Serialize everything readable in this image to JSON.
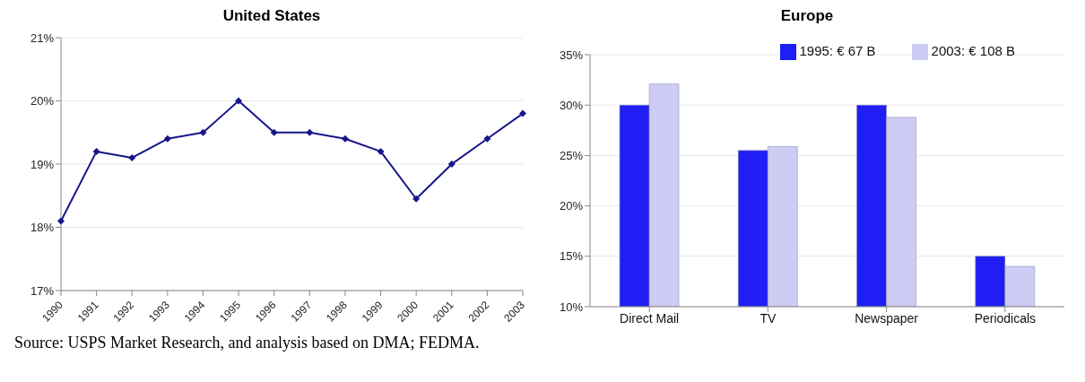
{
  "chart_data": [
    {
      "type": "line",
      "title": "United States",
      "categories": [
        "1990",
        "1991",
        "1992",
        "1993",
        "1994",
        "1995",
        "1996",
        "1997",
        "1998",
        "1999",
        "2000",
        "2001",
        "2002",
        "2003"
      ],
      "series": [
        {
          "color": "#16168a",
          "values": [
            18.1,
            19.2,
            19.1,
            19.4,
            19.5,
            20.0,
            19.5,
            19.5,
            19.4,
            19.2,
            18.45,
            19.0,
            19.4,
            19.8
          ]
        }
      ],
      "ylim": [
        17,
        21
      ],
      "yticks": [
        {
          "value": 17,
          "label": "17%"
        },
        {
          "value": 18,
          "label": "18%"
        },
        {
          "value": 19,
          "label": "19%"
        },
        {
          "value": 20,
          "label": "20%"
        },
        {
          "value": 21,
          "label": "21%"
        }
      ],
      "grid": "y",
      "legend": false,
      "marker": "diamond",
      "line_style": "solid",
      "annotations": [
        "Source: USPS Market Research, and analysis based on DMA; FEDMA."
      ]
    },
    {
      "type": "bar",
      "title": "Europe",
      "categories": [
        "Direct Mail",
        "TV",
        "Newspaper",
        "Periodicals"
      ],
      "series": [
        {
          "name": "1995: € 67 B",
          "color": "#1f1ff5",
          "values": [
            30,
            25.5,
            30,
            15
          ]
        },
        {
          "name": "2003: € 108 B",
          "color": "#ccccf5",
          "values": [
            32.1,
            25.9,
            28.8,
            14
          ]
        }
      ],
      "ylim": [
        10,
        35
      ],
      "yticks": [
        {
          "value": 10,
          "label": "10%"
        },
        {
          "value": 15,
          "label": "15%"
        },
        {
          "value": 20,
          "label": "20%"
        },
        {
          "value": 25,
          "label": "25%"
        },
        {
          "value": 30,
          "label": "30%"
        },
        {
          "value": 35,
          "label": "35%"
        }
      ],
      "grid": "y",
      "legend": "top right"
    }
  ]
}
